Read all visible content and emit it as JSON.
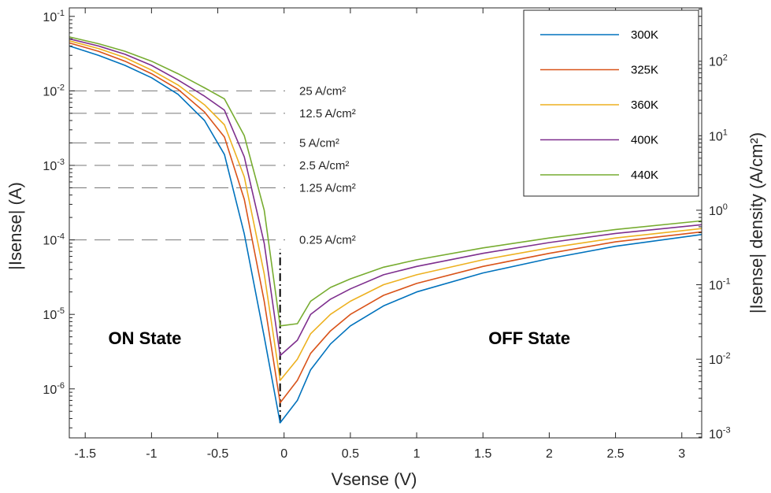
{
  "chart_data": {
    "type": "line",
    "xlabel": "Vsense (V)",
    "ylabel": "|Isense| (A)",
    "y2label": "|Isense| density (A/cm²)",
    "xlim": [
      -1.62,
      3.15
    ],
    "ylim": [
      2.2e-07,
      0.13
    ],
    "yscale": "log",
    "y2lim": [
      0.00088,
      520
    ],
    "y2scale": "log",
    "xticks": [
      -1.5,
      -1,
      -0.5,
      0,
      0.5,
      1,
      1.5,
      2,
      2.5,
      3
    ],
    "xtick_labels": [
      "-1.5",
      "-1",
      "-0.5",
      "0",
      "0.5",
      "1",
      "1.5",
      "2",
      "2.5",
      "3"
    ],
    "yticks": [
      {
        "value": 1e-06,
        "base": "10",
        "exp": "-6"
      },
      {
        "value": 1e-05,
        "base": "10",
        "exp": "-5"
      },
      {
        "value": 0.0001,
        "base": "10",
        "exp": "-4"
      },
      {
        "value": 0.001,
        "base": "10",
        "exp": "-3"
      },
      {
        "value": 0.01,
        "base": "10",
        "exp": "-2"
      },
      {
        "value": 0.1,
        "base": "10",
        "exp": "-1"
      }
    ],
    "y2ticks": [
      {
        "value": 0.001,
        "base": "10",
        "exp": "-3"
      },
      {
        "value": 0.01,
        "base": "10",
        "exp": "-2"
      },
      {
        "value": 0.1,
        "base": "10",
        "exp": "-1"
      },
      {
        "value": 1,
        "base": "10",
        "exp": "0"
      },
      {
        "value": 10,
        "base": "10",
        "exp": "1"
      },
      {
        "value": 100,
        "base": "10",
        "exp": "2"
      }
    ],
    "grid": false,
    "legend_position": "top-right",
    "series": [
      {
        "name": "300K",
        "color": "#0072BD",
        "x": [
          -1.62,
          -1.4,
          -1.2,
          -1.0,
          -0.8,
          -0.6,
          -0.45,
          -0.3,
          -0.15,
          -0.03,
          0.1,
          0.2,
          0.35,
          0.5,
          0.75,
          1.0,
          1.5,
          2.0,
          2.5,
          3.15
        ],
        "y": [
          0.04,
          0.03,
          0.022,
          0.015,
          0.009,
          0.004,
          0.0014,
          0.00012,
          5e-06,
          3.5e-07,
          7e-07,
          1.8e-06,
          4e-06,
          7e-06,
          1.3e-05,
          2e-05,
          3.6e-05,
          5.6e-05,
          8.2e-05,
          0.000118
        ]
      },
      {
        "name": "325K",
        "color": "#D95319",
        "x": [
          -1.62,
          -1.4,
          -1.2,
          -1.0,
          -0.8,
          -0.6,
          -0.45,
          -0.3,
          -0.15,
          -0.03,
          0.1,
          0.2,
          0.35,
          0.5,
          0.75,
          1.0,
          1.5,
          2.0,
          2.5,
          3.15
        ],
        "y": [
          0.044,
          0.034,
          0.025,
          0.017,
          0.0105,
          0.0052,
          0.0024,
          0.00035,
          1.5e-05,
          6.5e-07,
          1.3e-06,
          3e-06,
          6e-06,
          1e-05,
          1.8e-05,
          2.6e-05,
          4.4e-05,
          6.6e-05,
          9.4e-05,
          0.000128
        ]
      },
      {
        "name": "360K",
        "color": "#EDB120",
        "x": [
          -1.62,
          -1.4,
          -1.2,
          -1.0,
          -0.8,
          -0.6,
          -0.45,
          -0.3,
          -0.15,
          -0.03,
          0.1,
          0.2,
          0.35,
          0.5,
          0.75,
          1.0,
          1.5,
          2.0,
          2.5,
          3.15
        ],
        "y": [
          0.047,
          0.037,
          0.028,
          0.019,
          0.012,
          0.0065,
          0.0035,
          0.0007,
          3.5e-05,
          1.3e-06,
          2.5e-06,
          5.5e-06,
          1e-05,
          1.5e-05,
          2.5e-05,
          3.4e-05,
          5.4e-05,
          7.8e-05,
          0.000106,
          0.000142
        ]
      },
      {
        "name": "400K",
        "color": "#7E2F8E",
        "x": [
          -1.62,
          -1.4,
          -1.2,
          -1.0,
          -0.8,
          -0.6,
          -0.45,
          -0.3,
          -0.15,
          -0.03,
          0.1,
          0.2,
          0.35,
          0.5,
          0.75,
          1.0,
          1.5,
          2.0,
          2.5,
          3.15
        ],
        "y": [
          0.05,
          0.04,
          0.031,
          0.022,
          0.014,
          0.0085,
          0.0055,
          0.0013,
          9e-05,
          2.8e-06,
          4.5e-06,
          1e-05,
          1.6e-05,
          2.2e-05,
          3.4e-05,
          4.4e-05,
          6.6e-05,
          9.2e-05,
          0.000122,
          0.00016
        ]
      },
      {
        "name": "440K",
        "color": "#77AC30",
        "x": [
          -1.62,
          -1.4,
          -1.2,
          -1.0,
          -0.8,
          -0.6,
          -0.45,
          -0.3,
          -0.15,
          -0.03,
          0.1,
          0.2,
          0.35,
          0.5,
          0.75,
          1.0,
          1.5,
          2.0,
          2.5,
          3.15
        ],
        "y": [
          0.053,
          0.043,
          0.034,
          0.025,
          0.017,
          0.011,
          0.0078,
          0.0025,
          0.00025,
          7e-06,
          7.5e-06,
          1.5e-05,
          2.3e-05,
          3e-05,
          4.3e-05,
          5.4e-05,
          7.8e-05,
          0.000106,
          0.000138,
          0.00018
        ]
      }
    ],
    "annotations": [
      {
        "text": "25 A/cm²",
        "level": 0.01
      },
      {
        "text": "12.5 A/cm²",
        "level": 0.005
      },
      {
        "text": "5 A/cm²",
        "level": 0.002
      },
      {
        "text": "2.5 A/cm²",
        "level": 0.001
      },
      {
        "text": "1.25 A/cm²",
        "level": 0.0005
      },
      {
        "text": "0.25 A/cm²",
        "level": 0.0001
      }
    ],
    "dividing_line": {
      "x": -0.03,
      "y_from": 3.5e-07,
      "y_to": 7.5e-05
    },
    "regions": [
      {
        "text": "ON State",
        "x": -1.05,
        "y": 4e-06
      },
      {
        "text": "OFF State",
        "x": 1.85,
        "y": 4e-06
      }
    ]
  }
}
